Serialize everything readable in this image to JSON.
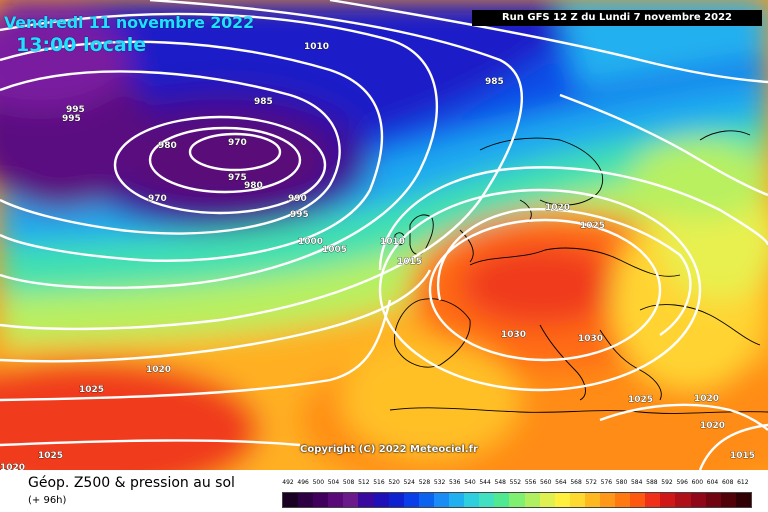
{
  "header": {
    "date": "Vendredi 11 novembre 2022",
    "time": "13:00 locale",
    "run": "Run GFS 12 Z du Lundi 7 novembre 2022"
  },
  "copyright": "Copyright (C) 2022 Meteociel.fr",
  "footer": {
    "title": "Géop. Z500 & pression au sol",
    "subtitle": "(+ 96h)"
  },
  "legend": {
    "ticks": [
      "492",
      "496",
      "500",
      "504",
      "508",
      "512",
      "516",
      "520",
      "524",
      "528",
      "532",
      "536",
      "540",
      "544",
      "548",
      "552",
      "556",
      "560",
      "564",
      "568",
      "572",
      "576",
      "580",
      "584",
      "588",
      "592",
      "596",
      "600",
      "604",
      "608",
      "612"
    ],
    "colors": [
      "#1a0022",
      "#2d0044",
      "#42005e",
      "#5a0a78",
      "#6a1a8a",
      "#3a0aa0",
      "#2010b8",
      "#1022d0",
      "#0a3ee8",
      "#0a64f0",
      "#1a8cf5",
      "#20b0f0",
      "#30cfe0",
      "#40e0c0",
      "#50e890",
      "#80f070",
      "#b0f060",
      "#e0f050",
      "#fff040",
      "#ffd830",
      "#ffb820",
      "#ff9818",
      "#ff7810",
      "#ff5810",
      "#f03018",
      "#d01818",
      "#b01018",
      "#900818",
      "#700410",
      "#500208",
      "#300004"
    ]
  },
  "map": {
    "isobar_labels": [
      {
        "text": "1010"
      },
      {
        "text": "985"
      },
      {
        "text": "995"
      },
      {
        "text": "995"
      },
      {
        "text": "985"
      },
      {
        "text": "980"
      },
      {
        "text": "970"
      },
      {
        "text": "975"
      },
      {
        "text": "980"
      },
      {
        "text": "970"
      },
      {
        "text": "990"
      },
      {
        "text": "995"
      },
      {
        "text": "1000"
      },
      {
        "text": "1005"
      },
      {
        "text": "1010"
      },
      {
        "text": "1015"
      },
      {
        "text": "1020"
      },
      {
        "text": "1025"
      },
      {
        "text": "1030"
      },
      {
        "text": "1030"
      },
      {
        "text": "1020"
      },
      {
        "text": "1025"
      },
      {
        "text": "1025"
      },
      {
        "text": "1020"
      },
      {
        "text": "1025"
      },
      {
        "text": "1020"
      },
      {
        "text": "1020"
      },
      {
        "text": "1015"
      }
    ]
  }
}
